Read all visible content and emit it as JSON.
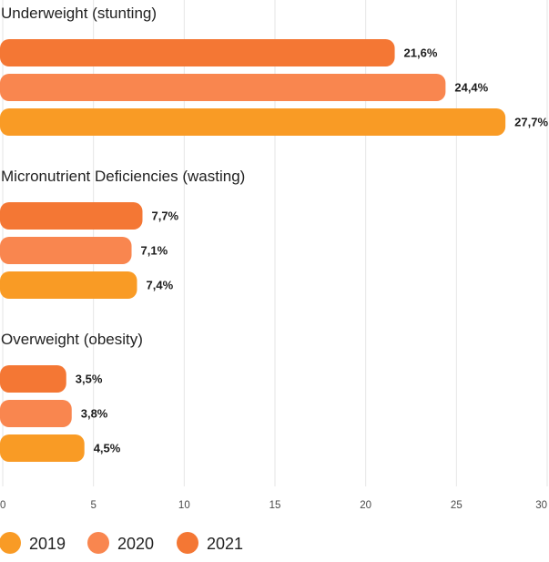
{
  "chart_data": {
    "type": "bar",
    "orientation": "horizontal",
    "title": "",
    "xlabel": "",
    "ylabel": "",
    "xlim": [
      0,
      30
    ],
    "x_ticks": [
      0,
      5,
      10,
      15,
      20,
      25,
      30
    ],
    "grid": true,
    "legend_position": "bottom",
    "categories": [
      "Underweight (stunting)",
      "Micronutrient Deficiencies (wasting)",
      "Overweight (obesity)"
    ],
    "bar_order": [
      "2021",
      "2020",
      "2019"
    ],
    "series": [
      {
        "name": "2021",
        "color": "#F47734",
        "values": [
          21.6,
          7.7,
          3.5
        ],
        "labels": [
          "21,6%",
          "7,7%",
          "3,5%"
        ]
      },
      {
        "name": "2020",
        "color": "#F9864F",
        "values": [
          24.4,
          7.1,
          3.8
        ],
        "labels": [
          "24,4%",
          "7,1%",
          "3,8%"
        ]
      },
      {
        "name": "2019",
        "color": "#F99B25",
        "values": [
          27.7,
          7.4,
          4.5
        ],
        "labels": [
          "27,7%",
          "7,4%",
          "4,5%"
        ]
      }
    ],
    "legend": [
      {
        "name": "2019",
        "color": "#F99B25"
      },
      {
        "name": "2020",
        "color": "#F9864F"
      },
      {
        "name": "2021",
        "color": "#F47734"
      }
    ]
  }
}
